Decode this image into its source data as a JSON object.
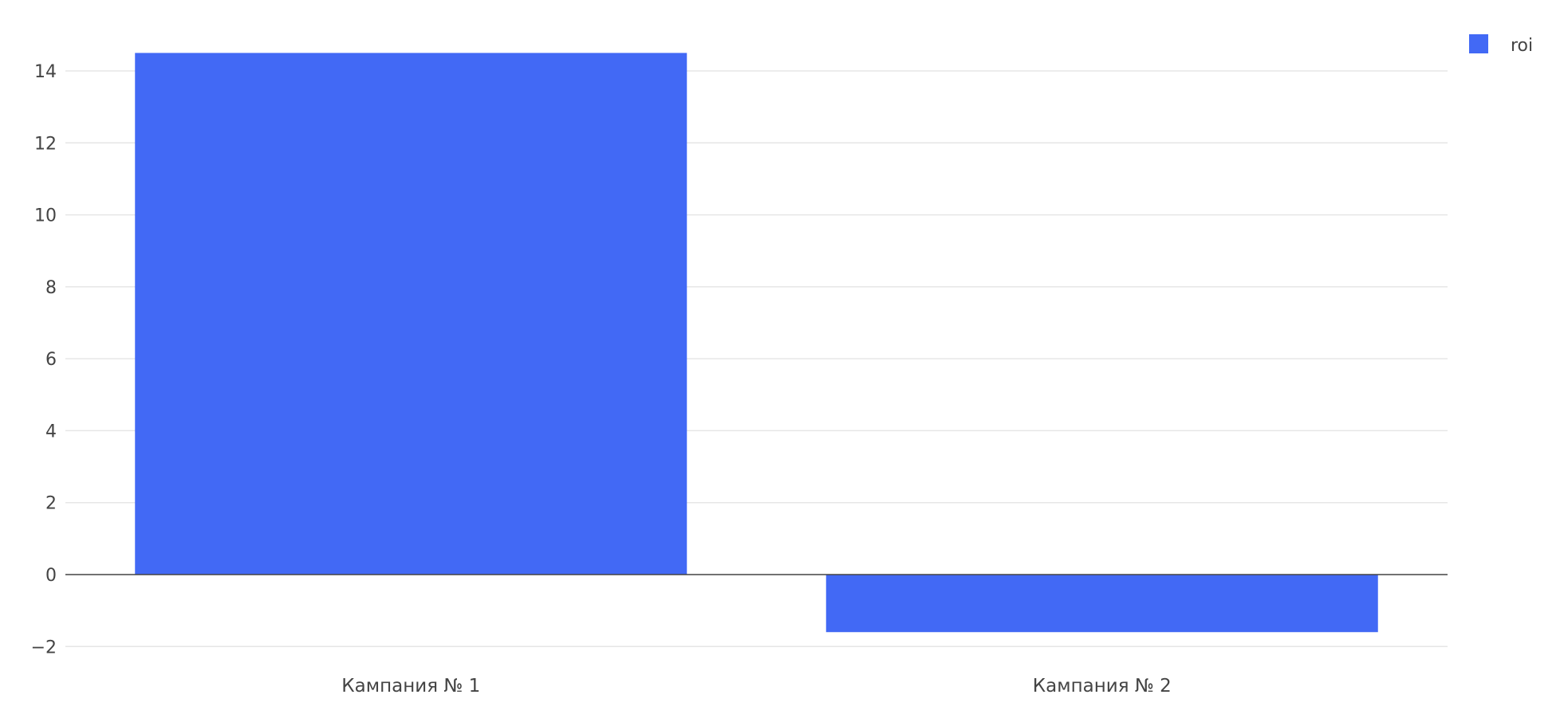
{
  "chart_data": {
    "type": "bar",
    "categories": [
      "Кампания № 1",
      "Кампания № 2"
    ],
    "series": [
      {
        "name": "roi",
        "values": [
          14.5,
          -1.6
        ],
        "color": "#4269F5"
      }
    ],
    "title": "",
    "xlabel": "",
    "ylabel": "",
    "ylim": [
      -2.5,
      15
    ],
    "yticks": [
      -2,
      0,
      2,
      4,
      6,
      8,
      10,
      12,
      14
    ],
    "ytick_labels": [
      "−2",
      "0",
      "2",
      "4",
      "6",
      "8",
      "10",
      "12",
      "14"
    ],
    "grid": true,
    "legend": "top-right",
    "colors": {
      "grid": "#e6e6e6",
      "zeroline": "#444444",
      "text": "#444444"
    }
  }
}
